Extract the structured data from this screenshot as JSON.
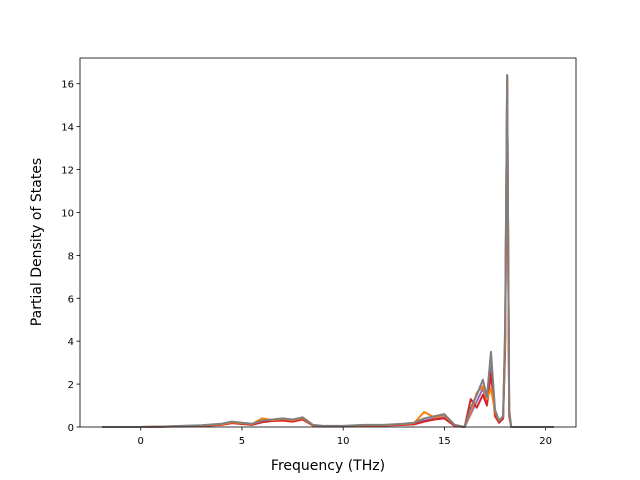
{
  "chart_data": {
    "type": "line",
    "x_label": "Frequency (THz)",
    "y_label": "Partial Density of States",
    "xlim": [
      -3.0,
      21.5
    ],
    "ylim": [
      0,
      17.2
    ],
    "xticks": [
      0,
      5,
      10,
      15,
      20
    ],
    "yticks": [
      0,
      2,
      4,
      6,
      8,
      10,
      12,
      14,
      16
    ],
    "x": [
      -1.9,
      0,
      1,
      2,
      3,
      4,
      4.5,
      5,
      5.5,
      6,
      6.5,
      7,
      7.5,
      8,
      8.5,
      9,
      10,
      11,
      12,
      13,
      13.5,
      14,
      14.5,
      15,
      15.5,
      16,
      16.3,
      16.6,
      16.9,
      17.1,
      17.3,
      17.5,
      17.7,
      17.9,
      18.0,
      18.1,
      18.2,
      18.3,
      18.6,
      19,
      20,
      20.4
    ],
    "series": [
      {
        "color": "#9467bd",
        "values": [
          0,
          0,
          0.01,
          0.04,
          0.06,
          0.12,
          0.2,
          0.16,
          0.12,
          0.25,
          0.3,
          0.32,
          0.3,
          0.38,
          0.08,
          0.04,
          0.04,
          0.08,
          0.08,
          0.12,
          0.15,
          0.3,
          0.4,
          0.45,
          0.08,
          0,
          0.6,
          1.2,
          1.8,
          1.1,
          2.8,
          0.6,
          0.2,
          0.4,
          4.0,
          16.4,
          0.6,
          0,
          0,
          0,
          0,
          0
        ]
      },
      {
        "color": "#d62728",
        "values": [
          0,
          0,
          0.01,
          0.03,
          0.05,
          0.1,
          0.18,
          0.14,
          0.1,
          0.22,
          0.28,
          0.3,
          0.25,
          0.35,
          0.07,
          0.03,
          0.03,
          0.07,
          0.07,
          0.1,
          0.12,
          0.25,
          0.35,
          0.4,
          0.05,
          0,
          1.3,
          0.9,
          1.5,
          1.0,
          2.5,
          0.5,
          0.2,
          0.4,
          3.6,
          16.2,
          0.5,
          0,
          0,
          0,
          0,
          0
        ]
      },
      {
        "color": "#ff7f0e",
        "values": [
          0,
          0,
          0.02,
          0.04,
          0.07,
          0.13,
          0.22,
          0.18,
          0.14,
          0.4,
          0.32,
          0.38,
          0.32,
          0.42,
          0.09,
          0.04,
          0.04,
          0.09,
          0.09,
          0.14,
          0.18,
          0.7,
          0.45,
          0.55,
          0.1,
          0,
          0.7,
          1.6,
          1.9,
          1.3,
          1.8,
          0.7,
          0.3,
          0.5,
          4.2,
          16.3,
          0.7,
          0,
          0,
          0,
          0,
          0
        ]
      },
      {
        "color": "#7f7f7f",
        "values": [
          0,
          0,
          0.02,
          0.05,
          0.08,
          0.15,
          0.25,
          0.2,
          0.15,
          0.3,
          0.35,
          0.4,
          0.35,
          0.45,
          0.1,
          0.05,
          0.05,
          0.1,
          0.1,
          0.15,
          0.2,
          0.4,
          0.5,
          0.6,
          0.1,
          0,
          0.9,
          1.5,
          2.2,
          1.4,
          3.5,
          0.8,
          0.3,
          0.5,
          4.8,
          16.4,
          0.8,
          0,
          0,
          0,
          0,
          0
        ]
      }
    ]
  }
}
